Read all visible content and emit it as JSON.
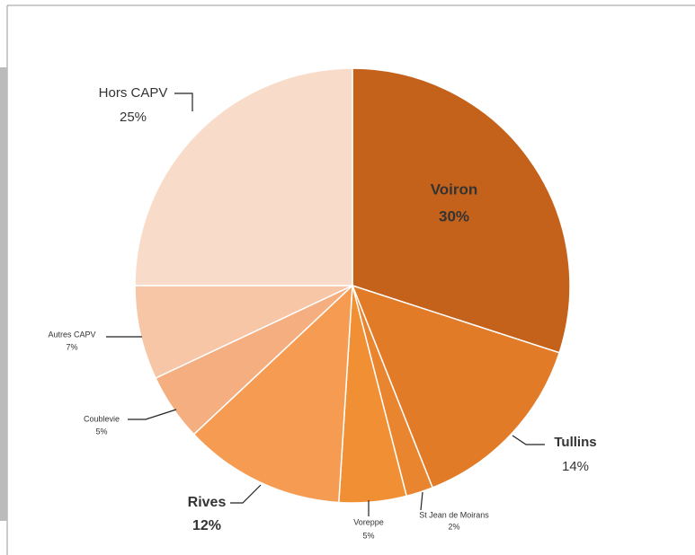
{
  "chart_data": {
    "type": "pie",
    "categories": [
      "Voiron",
      "Tullins",
      "St Jean de Moirans",
      "Voreppe",
      "Rives",
      "Coublevie",
      "Autres CAPV",
      "Hors CAPV"
    ],
    "values": [
      30,
      14,
      2,
      5,
      12,
      5,
      7,
      25
    ],
    "value_labels": [
      "30%",
      "14%",
      "2%",
      "5%",
      "12%",
      "5%",
      "7%",
      "25%"
    ],
    "colors": [
      "#c4621c",
      "#e27b28",
      "#e9852e",
      "#f08f33",
      "#f59c52",
      "#f5ae80",
      "#f7c6a6",
      "#f8dbc9"
    ]
  }
}
